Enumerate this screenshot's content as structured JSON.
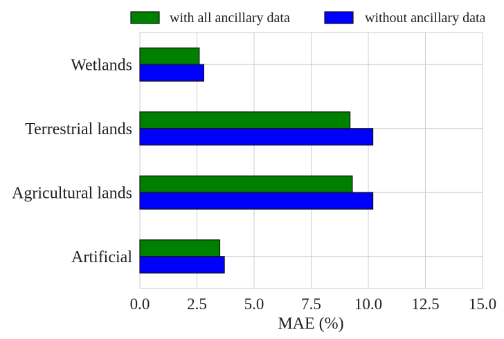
{
  "chart_data": {
    "type": "bar",
    "orientation": "horizontal",
    "title": "",
    "xlabel": "MAE (%)",
    "ylabel": "",
    "xlim": [
      0,
      15
    ],
    "xticks": [
      0,
      2.5,
      5,
      7.5,
      10,
      12.5,
      15
    ],
    "xtick_labels": [
      "0.0",
      "2.5",
      "5.0",
      "7.5",
      "10.0",
      "12.5",
      "15.0"
    ],
    "grid": true,
    "legend_position": "top",
    "categories": [
      "Wetlands",
      "Terrestrial lands",
      "Agricultural lands",
      "Artificial"
    ],
    "series": [
      {
        "name": "with all ancillary data",
        "color": "#008000",
        "values": [
          2.6,
          9.2,
          9.3,
          3.5
        ]
      },
      {
        "name": "without ancillary data",
        "color": "#0000ff",
        "values": [
          2.8,
          10.2,
          10.2,
          3.7
        ]
      }
    ]
  }
}
